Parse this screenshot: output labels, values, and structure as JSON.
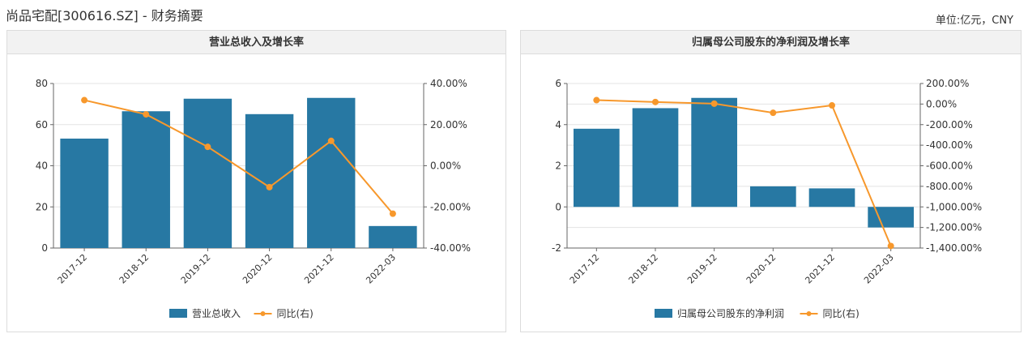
{
  "page": {
    "title": "尚品宅配[300616.SZ] - 财务摘要",
    "unit": "单位:亿元，CNY"
  },
  "colors": {
    "bar": "#2778a3",
    "line": "#f7982c",
    "grid": "#e3e3e3",
    "axis": "#666666"
  },
  "chart_data": [
    {
      "type": "bar",
      "title": "营业总收入及增长率",
      "categories": [
        "2017-12",
        "2018-12",
        "2019-12",
        "2020-12",
        "2021-12",
        "2022-03"
      ],
      "series": [
        {
          "name": "营业总收入",
          "type": "bar",
          "axis": "left",
          "values": [
            53.2,
            66.5,
            72.6,
            65.1,
            73.0,
            10.7
          ]
        },
        {
          "name": "同比(右)",
          "type": "line",
          "axis": "right",
          "values": [
            31.9,
            25.0,
            9.2,
            -10.4,
            12.1,
            -23.3
          ]
        }
      ],
      "y_left": {
        "min": 0,
        "max": 80,
        "ticks": [
          0,
          20,
          40,
          60,
          80
        ],
        "tick_labels": [
          "0",
          "20",
          "40",
          "60",
          "80"
        ]
      },
      "y_right": {
        "min": -40,
        "max": 40,
        "ticks": [
          -40,
          -20,
          0,
          20,
          40
        ],
        "tick_labels": [
          "-40.00%",
          "-20.00%",
          "0.00%",
          "20.00%",
          "40.00%"
        ]
      },
      "grid": true,
      "legend": "bottom"
    },
    {
      "type": "bar",
      "title": "归属母公司股东的净利润及增长率",
      "categories": [
        "2017-12",
        "2018-12",
        "2019-12",
        "2020-12",
        "2021-12",
        "2022-03"
      ],
      "series": [
        {
          "name": "归属母公司股东的净利润",
          "type": "bar",
          "axis": "left",
          "values": [
            3.8,
            4.8,
            5.3,
            1.0,
            0.9,
            -1.0
          ]
        },
        {
          "name": "同比(右)",
          "type": "line",
          "axis": "right",
          "values": [
            38,
            20,
            4,
            -85,
            -13,
            -1380
          ]
        }
      ],
      "y_left": {
        "min": -2,
        "max": 6,
        "ticks": [
          -2,
          0,
          2,
          4,
          6
        ],
        "tick_labels": [
          "-2",
          "0",
          "2",
          "4",
          "6"
        ]
      },
      "y_right": {
        "min": -1400,
        "max": 200,
        "ticks": [
          -1400,
          -1200,
          -1000,
          -800,
          -600,
          -400,
          -200,
          0,
          200
        ],
        "tick_labels": [
          "-1,400.00%",
          "-1,200.00%",
          "-1,000.00%",
          "-800.00%",
          "-600.00%",
          "-400.00%",
          "-200.00%",
          "0.00%",
          "200.00%"
        ]
      },
      "grid": true,
      "legend": "bottom"
    }
  ]
}
